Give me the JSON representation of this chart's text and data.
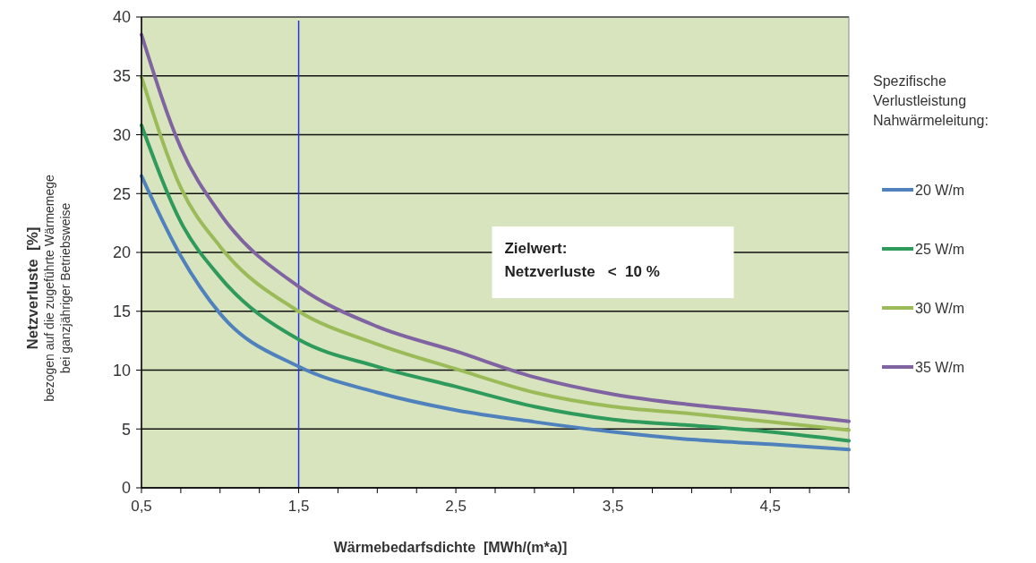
{
  "chart_data": {
    "type": "line",
    "xlabel": "Wärmebedarfsdichte  [MWh/(m*a)]",
    "ylabel": "Netzverluste  [%]\nbezogen auf die zugeführte Wärmemege\nbei ganzjähriger Betriebsweise",
    "legend_title": "Spezifische\nVerlustleistung\nNahwärmeleitung:",
    "annotations": [
      "Zielwert:\nNetzverluste   <  10 %"
    ],
    "x": [
      0.5,
      0.75,
      1,
      1.5,
      2,
      2.5,
      3,
      3.5,
      4,
      4.5,
      5
    ],
    "series": [
      {
        "name": "20 W/m",
        "color": "#4f81bd",
        "values": [
          26.5,
          19.7,
          14.8,
          10.3,
          8.1,
          6.6,
          5.6,
          4.75,
          4.1,
          3.7,
          3.25
        ]
      },
      {
        "name": "25 W/m",
        "color": "#2e9a5c",
        "values": [
          30.8,
          22.6,
          17.9,
          12.6,
          10.3,
          8.6,
          6.9,
          5.8,
          5.3,
          4.75,
          4.0
        ]
      },
      {
        "name": "30 W/m",
        "color": "#9bbb59",
        "values": [
          34.9,
          25.5,
          20.5,
          15.0,
          12.2,
          10.1,
          8.1,
          6.9,
          6.3,
          5.6,
          4.9
        ]
      },
      {
        "name": "35 W/m",
        "color": "#8064a2",
        "values": [
          38.5,
          28.9,
          23.3,
          17.1,
          13.7,
          11.6,
          9.4,
          7.95,
          7.05,
          6.4,
          5.65
        ]
      }
    ],
    "xlim": [
      0.5,
      5
    ],
    "xticks": [
      {
        "value": 0.5,
        "label": "0,5"
      },
      {
        "value": 0.75,
        "label": null
      },
      {
        "value": 1,
        "label": null
      },
      {
        "value": 1.25,
        "label": null
      },
      {
        "value": 1.5,
        "label": "1,5"
      },
      {
        "value": 1.75,
        "label": null
      },
      {
        "value": 2,
        "label": null
      },
      {
        "value": 2.25,
        "label": null
      },
      {
        "value": 2.5,
        "label": "2,5"
      },
      {
        "value": 2.75,
        "label": null
      },
      {
        "value": 3,
        "label": null
      },
      {
        "value": 3.25,
        "label": null
      },
      {
        "value": 3.5,
        "label": "3,5"
      },
      {
        "value": 3.75,
        "label": null
      },
      {
        "value": 4,
        "label": null
      },
      {
        "value": 4.25,
        "label": null
      },
      {
        "value": 4.5,
        "label": "4,5"
      },
      {
        "value": 4.75,
        "label": null
      },
      {
        "value": 5,
        "label": null
      }
    ],
    "ylim": [
      0,
      40
    ],
    "yticks": [
      0,
      5,
      10,
      15,
      20,
      25,
      30,
      35,
      40
    ],
    "ref_lines": [
      {
        "axis": "x",
        "value": 1.5,
        "color": "#2233ee"
      }
    ],
    "grid": "y",
    "legend": "right",
    "marker": "none",
    "line_style": "solid"
  }
}
